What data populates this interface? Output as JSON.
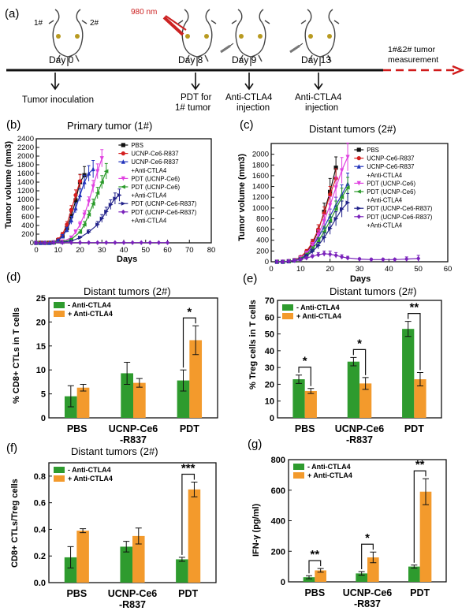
{
  "colors": {
    "green": "#2e9b2e",
    "orange": "#f39a2c",
    "red": "#cc2222",
    "dark": "#111111"
  },
  "timeline": {
    "panel": "(a)",
    "mouse_marks": [
      "1#",
      "2#"
    ],
    "laser": "980 nm",
    "days": [
      "Day 0",
      "Day 8",
      "Day 9",
      "Day 13"
    ],
    "events": [
      "Tumor inoculation",
      "PDT for",
      "1# tumor",
      "Anti-CTLA4",
      "injection",
      "Anti-CTLA4",
      "injection"
    ],
    "measurement": [
      "1#&2# tumor",
      "measurement"
    ]
  },
  "panel_b": {
    "letter": "(b)",
    "title": "Primary tumor (1#)",
    "xlabel": "Days",
    "ylabel": "Tumor volume (mm3)"
  },
  "panel_c": {
    "letter": "(c)",
    "title": "Distant tumors (2#)",
    "xlabel": "Days",
    "ylabel": "Tumor volume (mm3)"
  },
  "panel_d": {
    "letter": "(d)",
    "title": "Distant tumors (2#)",
    "ylabel": "% CD8+ CTLs in T cells",
    "legend": [
      "- Anti-CTLA4",
      "+ Anti-CTLA4"
    ]
  },
  "panel_e": {
    "letter": "(e)",
    "title": "Distant tumors (2#)",
    "ylabel": "% Treg cells in T cells",
    "legend": [
      "- Anti-CTLA4",
      "+ Anti-CTLA4"
    ]
  },
  "panel_f": {
    "letter": "(f)",
    "title": "Distant tumors (2#)",
    "ylabel": "CD8+ CTLs/Treg cells",
    "legend": [
      "- Anti-CTLA4",
      "+ Anti-CTLA4"
    ]
  },
  "panel_g": {
    "letter": "(g)",
    "ylabel": "IFN-γ (pg/ml)",
    "legend": [
      "- Anti-CTLA4",
      "+ Anti-CTLA4"
    ]
  },
  "chart_data": [
    {
      "id": "b",
      "type": "line",
      "title": "Primary tumor (1#)",
      "xlabel": "Days",
      "ylabel": "Tumor volume (mm3)",
      "xlim": [
        0,
        80
      ],
      "ylim": [
        0,
        2400
      ],
      "xticks": [
        0,
        10,
        20,
        30,
        40,
        50,
        60,
        70,
        80
      ],
      "yticks": [
        0,
        200,
        400,
        600,
        800,
        1000,
        1200,
        1400,
        1600,
        1800,
        2000,
        2200,
        2400
      ],
      "series": [
        {
          "name": "PBS",
          "color": "#111111",
          "marker": "square",
          "x": [
            0,
            2,
            4,
            6,
            8,
            10,
            12,
            14,
            16,
            18,
            20,
            22
          ],
          "y": [
            0,
            0,
            0,
            0,
            10,
            60,
            150,
            340,
            620,
            980,
            1400,
            1560
          ],
          "err": [
            0,
            0,
            0,
            0,
            5,
            20,
            40,
            70,
            100,
            140,
            180,
            200
          ]
        },
        {
          "name": "UCNP-Ce6-R837",
          "color": "#d42020",
          "marker": "circle",
          "x": [
            0,
            2,
            4,
            6,
            8,
            10,
            12,
            14,
            16,
            18,
            20
          ],
          "y": [
            0,
            0,
            0,
            0,
            10,
            80,
            200,
            420,
            760,
            1100,
            1420
          ],
          "err": [
            0,
            0,
            0,
            0,
            5,
            25,
            40,
            70,
            100,
            120,
            150
          ]
        },
        {
          "name": "UCNP-Ce6-R837 +Anti-CTLA4",
          "color": "#2233bb",
          "marker": "triangle",
          "x": [
            0,
            2,
            4,
            6,
            8,
            10,
            12,
            14,
            16,
            18,
            20,
            22,
            24,
            26
          ],
          "y": [
            0,
            0,
            0,
            0,
            10,
            60,
            150,
            300,
            520,
            800,
            1100,
            1400,
            1600,
            1700
          ],
          "err": [
            0,
            0,
            0,
            0,
            5,
            20,
            40,
            60,
            90,
            110,
            140,
            160,
            180,
            200
          ]
        },
        {
          "name": "PDT (UCNP-Ce6)",
          "color": "#e040e0",
          "marker": "triangle-down",
          "x": [
            0,
            4,
            8,
            12,
            16,
            18,
            20,
            22,
            24,
            26,
            28,
            30
          ],
          "y": [
            0,
            0,
            5,
            30,
            120,
            250,
            420,
            650,
            950,
            1300,
            1650,
            1950
          ],
          "err": [
            0,
            0,
            0,
            10,
            30,
            50,
            70,
            90,
            110,
            140,
            170,
            200
          ]
        },
        {
          "name": "PDT (UCNP-Ce6) +Anti-CTLA4",
          "color": "#2a9a2a",
          "marker": "triangle-left",
          "x": [
            0,
            4,
            8,
            12,
            16,
            20,
            22,
            24,
            26,
            28,
            30,
            32
          ],
          "y": [
            0,
            0,
            5,
            20,
            80,
            250,
            420,
            650,
            900,
            1150,
            1400,
            1650
          ],
          "err": [
            0,
            0,
            0,
            10,
            20,
            50,
            70,
            90,
            110,
            130,
            150,
            180
          ]
        },
        {
          "name": "PDT (UCNP-Ce6-R837)",
          "color": "#22228a",
          "marker": "triangle-right",
          "x": [
            0,
            4,
            8,
            12,
            16,
            20,
            24,
            28,
            30,
            32,
            34,
            36,
            38
          ],
          "y": [
            0,
            0,
            5,
            15,
            40,
            120,
            250,
            420,
            560,
            720,
            880,
            1020,
            1100
          ],
          "err": [
            0,
            0,
            0,
            5,
            10,
            30,
            50,
            70,
            90,
            100,
            110,
            130,
            140
          ]
        },
        {
          "name": "PDT (UCNP-Ce6-R837) +Anti-CTLA4",
          "color": "#7a22bb",
          "marker": "diamond",
          "x": [
            0,
            4,
            8,
            12,
            16,
            20,
            24,
            28,
            32,
            36,
            40,
            44,
            48,
            52,
            56,
            60
          ],
          "y": [
            0,
            0,
            5,
            5,
            5,
            5,
            5,
            5,
            5,
            5,
            5,
            5,
            5,
            5,
            5,
            5
          ],
          "err": [
            0,
            0,
            0,
            0,
            0,
            0,
            0,
            0,
            0,
            0,
            0,
            0,
            0,
            0,
            0,
            0
          ]
        }
      ]
    },
    {
      "id": "c",
      "type": "line",
      "title": "Distant tumors (2#)",
      "xlabel": "Days",
      "ylabel": "Tumor volume (mm3)",
      "xlim": [
        0,
        60
      ],
      "ylim": [
        0,
        2200
      ],
      "xticks": [
        0,
        10,
        20,
        30,
        40,
        50,
        60
      ],
      "yticks": [
        0,
        200,
        400,
        600,
        800,
        1000,
        1200,
        1400,
        1600,
        1800,
        2000
      ],
      "series": [
        {
          "name": "PBS",
          "color": "#111111",
          "marker": "square",
          "x": [
            2,
            4,
            6,
            8,
            10,
            12,
            14,
            16,
            18,
            20,
            22
          ],
          "y": [
            0,
            0,
            10,
            30,
            80,
            170,
            330,
            580,
            930,
            1300,
            1750
          ],
          "err": [
            0,
            0,
            5,
            10,
            20,
            40,
            70,
            110,
            160,
            250,
            200
          ]
        },
        {
          "name": "UCNP-Ce6-R837",
          "color": "#d42020",
          "marker": "circle",
          "x": [
            2,
            4,
            6,
            8,
            10,
            12,
            14,
            16,
            18,
            20,
            22
          ],
          "y": [
            0,
            0,
            10,
            30,
            90,
            190,
            360,
            600,
            900,
            1250,
            1550
          ],
          "err": [
            0,
            0,
            5,
            10,
            20,
            40,
            60,
            90,
            120,
            150,
            180
          ]
        },
        {
          "name": "UCNP-Ce6-R837 +Anti-CTLA4",
          "color": "#2233bb",
          "marker": "triangle",
          "x": [
            2,
            4,
            6,
            8,
            10,
            12,
            14,
            16,
            18,
            20,
            22,
            24,
            26
          ],
          "y": [
            0,
            0,
            10,
            25,
            70,
            150,
            280,
            450,
            650,
            850,
            1050,
            1250,
            1450
          ],
          "err": [
            0,
            0,
            5,
            10,
            20,
            35,
            50,
            80,
            110,
            130,
            150,
            180,
            200
          ]
        },
        {
          "name": "PDT (UCNP-Ce6)",
          "color": "#e040e0",
          "marker": "triangle-down",
          "x": [
            2,
            4,
            6,
            8,
            10,
            12,
            14,
            16,
            18,
            20,
            22,
            24,
            26
          ],
          "y": [
            0,
            0,
            10,
            25,
            70,
            160,
            300,
            500,
            760,
            1050,
            1380,
            1700,
            1950
          ],
          "err": [
            0,
            0,
            5,
            10,
            20,
            35,
            60,
            90,
            120,
            160,
            200,
            240,
            260
          ]
        },
        {
          "name": "PDT (UCNP-Ce6) +Anti-CTLA4",
          "color": "#2a9a2a",
          "marker": "triangle-left",
          "x": [
            2,
            4,
            6,
            8,
            10,
            12,
            14,
            16,
            18,
            20,
            22,
            24,
            26
          ],
          "y": [
            0,
            0,
            10,
            20,
            60,
            130,
            230,
            380,
            560,
            760,
            980,
            1200,
            1380
          ],
          "err": [
            0,
            0,
            5,
            10,
            15,
            30,
            50,
            70,
            100,
            120,
            150,
            170,
            190
          ]
        },
        {
          "name": "PDT (UCNP-Ce6-R837)",
          "color": "#22228a",
          "marker": "triangle-right",
          "x": [
            2,
            4,
            6,
            8,
            10,
            12,
            14,
            16,
            18,
            20,
            22,
            24,
            26
          ],
          "y": [
            0,
            0,
            10,
            20,
            50,
            110,
            190,
            300,
            450,
            620,
            800,
            980,
            1100
          ],
          "err": [
            0,
            0,
            5,
            10,
            15,
            25,
            40,
            60,
            90,
            110,
            130,
            150,
            170
          ]
        },
        {
          "name": "PDT (UCNP-Ce6-R837) +Anti-CTLA4",
          "color": "#7a22bb",
          "marker": "diamond",
          "x": [
            2,
            4,
            6,
            8,
            10,
            12,
            14,
            16,
            18,
            20,
            22,
            24,
            26,
            30,
            34,
            38,
            42,
            46,
            50
          ],
          "y": [
            0,
            0,
            10,
            20,
            40,
            70,
            100,
            130,
            150,
            140,
            120,
            90,
            70,
            50,
            40,
            40,
            40,
            50,
            60
          ],
          "err": [
            0,
            0,
            5,
            10,
            15,
            20,
            30,
            40,
            50,
            60,
            50,
            40,
            30,
            20,
            20,
            20,
            20,
            40,
            60
          ]
        }
      ]
    },
    {
      "id": "d",
      "type": "bar",
      "title": "Distant tumors (2#)",
      "ylabel": "% CD8+ CTLs in T cells",
      "categories": [
        "PBS",
        "UCNP-Ce6 -R837",
        "PDT"
      ],
      "ylim": [
        0,
        25
      ],
      "yticks": [
        0,
        5,
        10,
        15,
        20,
        25
      ],
      "series": [
        {
          "name": "- Anti-CTLA4",
          "values": [
            4.5,
            9.3,
            7.8
          ],
          "err": [
            2.2,
            2.3,
            2.2
          ]
        },
        {
          "name": "+ Anti-CTLA4",
          "values": [
            6.3,
            7.3,
            16.2
          ],
          "err": [
            0.7,
            0.9,
            3.0
          ]
        }
      ],
      "significance": [
        {
          "category": "PDT",
          "label": "*"
        }
      ]
    },
    {
      "id": "e",
      "type": "bar",
      "title": "Distant tumors (2#)",
      "ylabel": "% Treg cells in T cells",
      "categories": [
        "PBS",
        "UCNP-Ce6 -R837",
        "PDT"
      ],
      "ylim": [
        0,
        70
      ],
      "yticks": [
        0,
        10,
        20,
        30,
        40,
        50,
        60,
        70
      ],
      "series": [
        {
          "name": "- Anti-CTLA4",
          "values": [
            23,
            33.5,
            53
          ],
          "err": [
            2.5,
            2.5,
            4.5
          ]
        },
        {
          "name": "+ Anti-CTLA4",
          "values": [
            16,
            20.5,
            23
          ],
          "err": [
            1.5,
            3.5,
            4.0
          ]
        }
      ],
      "significance": [
        {
          "category": "PBS",
          "label": "*"
        },
        {
          "category": "UCNP-Ce6 -R837",
          "label": "*"
        },
        {
          "category": "PDT",
          "label": "**"
        }
      ]
    },
    {
      "id": "f",
      "type": "bar",
      "title": "Distant tumors (2#)",
      "ylabel": "CD8+ CTLs/Treg cells",
      "categories": [
        "PBS",
        "UCNP-Ce6 -R837",
        "PDT"
      ],
      "ylim": [
        0,
        0.9
      ],
      "yticks": [
        0.0,
        0.2,
        0.4,
        0.6,
        0.8
      ],
      "series": [
        {
          "name": "- Anti-CTLA4",
          "values": [
            0.19,
            0.27,
            0.175
          ],
          "err": [
            0.08,
            0.04,
            0.015
          ]
        },
        {
          "name": "+ Anti-CTLA4",
          "values": [
            0.39,
            0.35,
            0.7
          ],
          "err": [
            0.015,
            0.06,
            0.055
          ]
        }
      ],
      "significance": [
        {
          "category": "PDT",
          "label": "***"
        }
      ]
    },
    {
      "id": "g",
      "type": "bar",
      "ylabel": "IFN-γ (pg/ml)",
      "categories": [
        "PBS",
        "UCNP-Ce6 -R837",
        "PDT"
      ],
      "ylim": [
        0,
        800
      ],
      "yticks": [
        0,
        200,
        400,
        600,
        800
      ],
      "series": [
        {
          "name": "- Anti-CTLA4",
          "values": [
            30,
            55,
            100
          ],
          "err": [
            10,
            12,
            10
          ]
        },
        {
          "name": "+ Anti-CTLA4",
          "values": [
            75,
            160,
            590
          ],
          "err": [
            12,
            35,
            85
          ]
        }
      ],
      "significance": [
        {
          "category": "PBS",
          "label": "**"
        },
        {
          "category": "UCNP-Ce6 -R837",
          "label": "*"
        },
        {
          "category": "PDT",
          "label": "**"
        }
      ]
    }
  ]
}
